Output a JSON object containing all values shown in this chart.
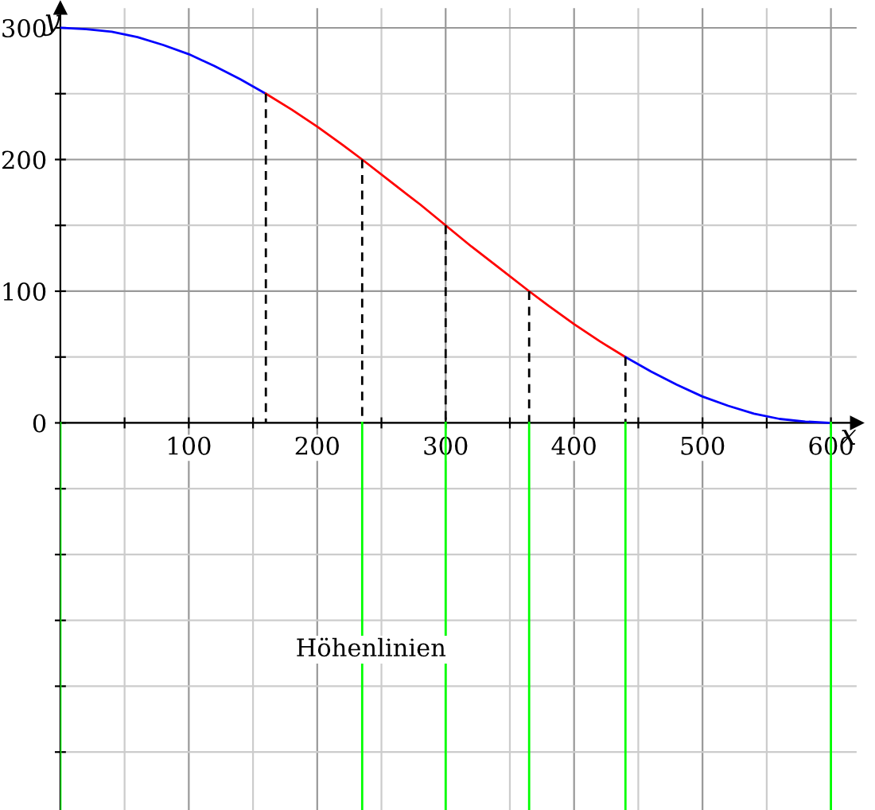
{
  "chart_data": {
    "type": "line",
    "xlabel": "x",
    "ylabel": "y",
    "xlim": [
      0,
      620
    ],
    "ylim": [
      -294,
      315
    ],
    "xticks": [
      {
        "value": 50,
        "label": null
      },
      100,
      {
        "value": 150,
        "label": null
      },
      200,
      {
        "value": 250,
        "label": null
      },
      300,
      {
        "value": 350,
        "label": null
      },
      400,
      {
        "value": 450,
        "label": null
      },
      500,
      {
        "value": 550,
        "label": null
      },
      600
    ],
    "yticks": [
      {
        "value": -250,
        "label": null
      },
      {
        "value": -200,
        "label": null
      },
      {
        "value": -150,
        "label": null
      },
      {
        "value": -100,
        "label": null
      },
      {
        "value": -50,
        "label": null
      },
      0,
      {
        "value": 50,
        "label": null
      },
      100,
      {
        "value": 150,
        "label": null
      },
      200,
      {
        "value": 250,
        "label": null
      },
      300
    ],
    "grid": true,
    "legend": false,
    "marker": "none",
    "annotations": [
      "Höhenlinien"
    ],
    "series": [
      {
        "color": "#0000ff",
        "line_style": "solid",
        "x": [
          0,
          20,
          40,
          60,
          80,
          100,
          120,
          140,
          160
        ],
        "values": [
          300,
          299,
          297,
          293,
          287,
          280,
          271,
          261,
          250
        ]
      },
      {
        "color": "#ff0000",
        "line_style": "solid",
        "x": [
          160,
          180,
          200,
          220,
          235,
          260,
          280,
          300,
          320,
          340,
          365,
          380,
          400,
          420,
          440
        ],
        "values": [
          250,
          238,
          225,
          211,
          200,
          181,
          166,
          150,
          134,
          119,
          100,
          89,
          75,
          62,
          50
        ]
      },
      {
        "color": "#0000ff",
        "line_style": "solid",
        "x": [
          440,
          460,
          480,
          500,
          520,
          540,
          560,
          580,
          600
        ],
        "values": [
          50,
          39,
          29,
          20,
          13,
          7,
          3,
          1,
          0
        ]
      },
      {
        "color": "#000000",
        "line_style": "dashed",
        "x": [
          160,
          160
        ],
        "values": [
          250,
          0
        ]
      },
      {
        "color": "#000000",
        "line_style": "dashed",
        "x": [
          235,
          235
        ],
        "values": [
          200,
          0
        ]
      },
      {
        "color": "#000000",
        "line_style": "dashed",
        "x": [
          300,
          300
        ],
        "values": [
          150,
          0
        ]
      },
      {
        "color": "#000000",
        "line_style": "dashed",
        "x": [
          365,
          365
        ],
        "values": [
          100,
          0
        ]
      },
      {
        "color": "#000000",
        "line_style": "dashed",
        "x": [
          440,
          440
        ],
        "values": [
          50,
          0
        ]
      },
      {
        "color": "#00ff00",
        "line_style": "solid",
        "x": [
          0,
          0
        ],
        "values": [
          0,
          -294
        ]
      },
      {
        "color": "#00ff00",
        "line_style": "solid",
        "x": [
          235,
          235
        ],
        "values": [
          0,
          -294
        ]
      },
      {
        "color": "#00ff00",
        "line_style": "solid",
        "x": [
          300,
          300
        ],
        "values": [
          0,
          -294
        ]
      },
      {
        "color": "#00ff00",
        "line_style": "solid",
        "x": [
          365,
          365
        ],
        "values": [
          0,
          -294
        ]
      },
      {
        "color": "#00ff00",
        "line_style": "solid",
        "x": [
          440,
          440
        ],
        "values": [
          0,
          -294
        ]
      },
      {
        "color": "#00ff00",
        "line_style": "solid",
        "x": [
          600,
          600
        ],
        "values": [
          0,
          -294
        ]
      }
    ]
  }
}
